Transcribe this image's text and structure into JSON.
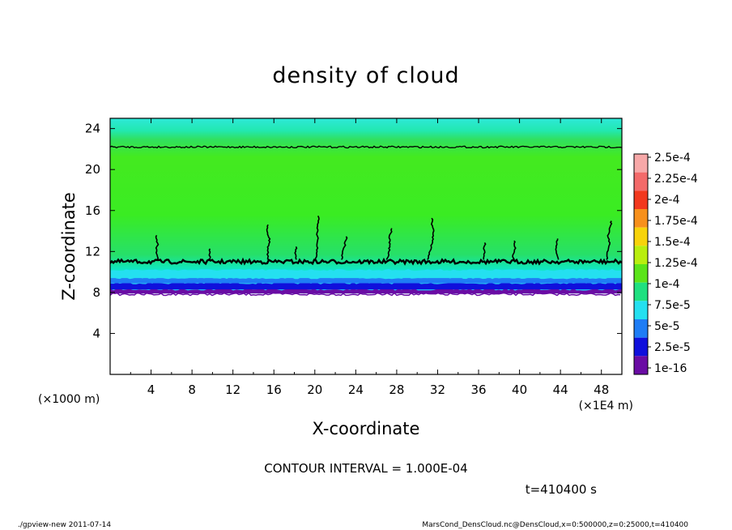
{
  "chart_data": {
    "type": "heatmap",
    "title": "density of cloud",
    "xlabel": "X-coordinate",
    "ylabel": "Z-coordinate",
    "x_unit_left": "(×1000 m)",
    "x_unit_right": "(×1E4 m)",
    "xlim": [
      0,
      50
    ],
    "ylim": [
      0,
      25
    ],
    "xticks": [
      "4",
      "8",
      "12",
      "16",
      "20",
      "24",
      "28",
      "32",
      "36",
      "40",
      "44",
      "48"
    ],
    "yticks": [
      "4",
      "8",
      "12",
      "16",
      "20",
      "24"
    ],
    "bands": [
      {
        "z0": 0,
        "z1": 7.9,
        "value": null
      },
      {
        "z0": 7.9,
        "z1": 8.3,
        "value": "1e-16"
      },
      {
        "z0": 8.3,
        "z1": 8.9,
        "value": "2.5e-5"
      },
      {
        "z0": 8.9,
        "z1": 9.4,
        "value": "5e-5"
      },
      {
        "z0": 9.4,
        "z1": 10.2,
        "value": "7.5e-5"
      },
      {
        "z0": 10.2,
        "z1": 10.9,
        "value": "7.5e-5"
      },
      {
        "z0": 10.9,
        "z1": 22.5,
        "value": "1e-4"
      },
      {
        "z0": 22.5,
        "z1": 24.0,
        "value": "7.5e-5"
      },
      {
        "z0": 24.0,
        "z1": 25.0,
        "value": "7.5e-5"
      }
    ],
    "contour_levels_z": [
      11.0,
      22.2
    ],
    "colorbar": {
      "labels": [
        "2.5e-4",
        "2.25e-4",
        "2e-4",
        "1.75e-4",
        "1.5e-4",
        "1.25e-4",
        "1e-4",
        "7.5e-5",
        "5e-5",
        "2.5e-5",
        "1e-16"
      ],
      "colors": [
        "#f7a8a8",
        "#f36a6a",
        "#f2381e",
        "#f7901c",
        "#f7d30b",
        "#b9ee0f",
        "#5be41a",
        "#1fe080",
        "#24e0f0",
        "#1f7df5",
        "#1010dc",
        "#6a0ca4"
      ]
    },
    "contour_interval": "CONTOUR INTERVAL = 1.000E-04",
    "time": "t=410400 s"
  },
  "footer": {
    "left": "./gpview-new 2011-07-14",
    "right": "MarsCond_DensCloud.nc@DensCloud,x=0:500000,z=0:25000,t=410400"
  }
}
